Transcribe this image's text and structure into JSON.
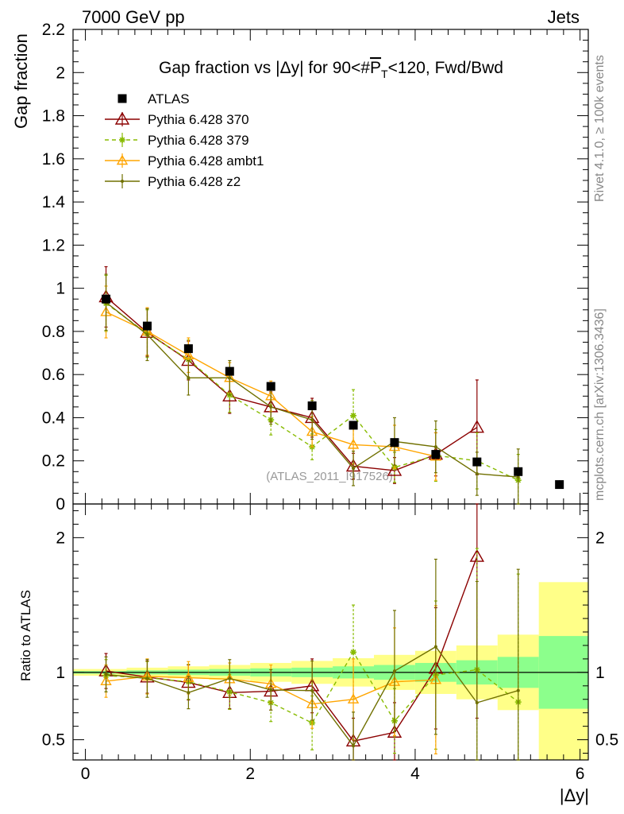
{
  "header": {
    "left": "7000 GeV pp",
    "right": "Jets"
  },
  "side_labels": {
    "rivet": "Rivet 4.1.0, ≥ 100k events",
    "mcplots": "mcplots.cern.ch [arXiv:1306.3436]"
  },
  "watermark": "(ATLAS_2011_I917526)",
  "colors": {
    "atlas": "#000000",
    "p370": "#8b0000",
    "p379": "#88bb00",
    "ambt1": "#ffa500",
    "z2": "#707000",
    "band_inner": "#8cff8c",
    "band_outer": "#ffff88"
  },
  "chart_data": [
    {
      "type": "scatter",
      "title": "Gap fraction vs |Δy| for 90<#P̅_T<120, Fwd/Bwd",
      "title_parts": {
        "pre": "Gap fraction vs |Δy| for 90<#",
        "p": "P",
        "t": "T",
        "post": "<120, Fwd/Bwd"
      },
      "xlabel": "|Δy|",
      "ylabel": "Gap fraction",
      "xlim": [
        -0.15,
        6.1
      ],
      "ylim": [
        0,
        2.2
      ],
      "x_ticks": [
        0,
        2,
        4,
        6
      ],
      "y_ticks": [
        0,
        0.2,
        0.4,
        0.6,
        0.8,
        1,
        1.2,
        1.4,
        1.6,
        1.8,
        2,
        2.2
      ],
      "y_tick_labels": [
        "0",
        "0.2",
        "0.4",
        "0.6",
        "0.8",
        "1",
        "1.2",
        "1.4",
        "1.6",
        "1.8",
        "2",
        "2.2"
      ],
      "x_tick_labels": [
        "0",
        "2",
        "4",
        "6"
      ],
      "legend": [
        "ATLAS",
        "Pythia 6.428 370",
        "Pythia 6.428 379",
        "Pythia 6.428 ambt1",
        "Pythia 6.428 z2"
      ],
      "series": [
        {
          "name": "ATLAS",
          "x": [
            0.25,
            0.75,
            1.25,
            1.75,
            2.25,
            2.75,
            3.25,
            3.75,
            4.25,
            4.75,
            5.25,
            5.75
          ],
          "values": [
            0.95,
            0.825,
            0.72,
            0.615,
            0.545,
            0.455,
            0.365,
            0.285,
            0.23,
            0.195,
            0.15,
            0.09
          ],
          "errors": [
            0.02,
            0.02,
            0.02,
            0.02,
            0.02,
            0.02,
            0.02,
            0.02,
            0.02,
            0.02,
            0.02,
            0.02
          ]
        },
        {
          "name": "Pythia 6.428 370",
          "x": [
            0.25,
            0.75,
            1.25,
            1.75,
            2.25,
            2.75,
            3.25,
            3.75,
            4.25,
            4.75
          ],
          "values": [
            0.96,
            0.795,
            0.665,
            0.5,
            0.45,
            0.4,
            0.175,
            0.155,
            0.23,
            0.355
          ],
          "errors": [
            0.14,
            0.11,
            0.09,
            0.08,
            0.07,
            0.09,
            0.06,
            0.06,
            0.1,
            0.22
          ]
        },
        {
          "name": "Pythia 6.428 379",
          "x": [
            0.25,
            0.75,
            1.25,
            1.75,
            2.25,
            2.75,
            3.25,
            3.75,
            4.25,
            4.75,
            5.25
          ],
          "values": [
            0.93,
            0.79,
            0.67,
            0.505,
            0.39,
            0.265,
            0.41,
            0.17,
            0.225,
            0.2,
            0.11
          ],
          "errors": [
            0.13,
            0.11,
            0.09,
            0.08,
            0.07,
            0.06,
            0.12,
            0.07,
            0.12,
            0.13,
            0.12
          ]
        },
        {
          "name": "Pythia 6.428 ambt1",
          "x": [
            0.25,
            0.75,
            1.25,
            1.75,
            2.25,
            2.75,
            3.25,
            3.75,
            4.25
          ],
          "values": [
            0.89,
            0.8,
            0.69,
            0.585,
            0.5,
            0.335,
            0.275,
            0.265,
            0.22
          ],
          "errors": [
            0.12,
            0.11,
            0.08,
            0.07,
            0.07,
            0.07,
            0.09,
            0.1,
            0.11
          ]
        },
        {
          "name": "Pythia 6.428 z2",
          "x": [
            0.25,
            0.75,
            1.25,
            1.75,
            2.25,
            2.75,
            3.25,
            3.75,
            4.25,
            4.75,
            5.25
          ],
          "values": [
            0.935,
            0.785,
            0.585,
            0.585,
            0.45,
            0.39,
            0.165,
            0.29,
            0.265,
            0.14,
            0.125
          ],
          "errors": [
            0.13,
            0.12,
            0.08,
            0.08,
            0.08,
            0.09,
            0.08,
            0.11,
            0.12,
            0.1,
            0.13
          ]
        }
      ]
    },
    {
      "type": "scatter",
      "title": "",
      "xlabel": "|Δy|",
      "ylabel": "Ratio to ATLAS",
      "xlim": [
        -0.15,
        6.1
      ],
      "ylim": [
        0.35,
        2.25
      ],
      "x_ticks": [
        0,
        2,
        4,
        6
      ],
      "x_tick_labels": [
        "0",
        "2",
        "4",
        "6"
      ],
      "y_ticks": [
        0.5,
        1,
        2
      ],
      "y_tick_labels": [
        "0.5",
        "1",
        "2"
      ],
      "bands": {
        "edges": [
          -0.15,
          0.5,
          1.0,
          1.5,
          2.0,
          2.5,
          3.0,
          3.5,
          4.0,
          4.5,
          5.0,
          5.5,
          6.1
        ],
        "inner_lo": [
          0.99,
          0.985,
          0.98,
          0.975,
          0.97,
          0.965,
          0.955,
          0.945,
          0.93,
          0.91,
          0.885,
          0.73
        ],
        "inner_hi": [
          1.01,
          1.015,
          1.02,
          1.025,
          1.03,
          1.035,
          1.045,
          1.055,
          1.07,
          1.09,
          1.115,
          1.27
        ],
        "outer_lo": [
          0.975,
          0.965,
          0.955,
          0.945,
          0.93,
          0.915,
          0.895,
          0.87,
          0.84,
          0.8,
          0.72,
          0.33
        ],
        "outer_hi": [
          1.025,
          1.035,
          1.045,
          1.055,
          1.07,
          1.085,
          1.105,
          1.13,
          1.16,
          1.2,
          1.28,
          1.67
        ]
      },
      "series": [
        {
          "name": "Pythia 6.428 370",
          "x": [
            0.25,
            0.75,
            1.25,
            1.75,
            2.25,
            2.75,
            3.25,
            3.75,
            4.25,
            4.75
          ],
          "values": [
            1.01,
            0.965,
            0.925,
            0.85,
            0.86,
            0.9,
            0.49,
            0.555,
            1.03,
            1.86
          ],
          "errors": [
            0.13,
            0.12,
            0.13,
            0.12,
            0.14,
            0.2,
            0.17,
            0.22,
            0.45,
            1.2
          ]
        },
        {
          "name": "Pythia 6.428 379",
          "x": [
            0.25,
            0.75,
            1.25,
            1.75,
            2.25,
            2.75,
            3.25,
            3.75,
            4.25,
            4.75,
            5.25
          ],
          "values": [
            0.975,
            0.96,
            0.93,
            0.855,
            0.775,
            0.625,
            1.15,
            0.64,
            0.98,
            1.02,
            0.78
          ],
          "errors": [
            0.12,
            0.12,
            0.13,
            0.13,
            0.14,
            0.2,
            0.35,
            0.24,
            0.55,
            0.9,
            0.95
          ]
        },
        {
          "name": "Pythia 6.428 ambt1",
          "x": [
            0.25,
            0.75,
            1.25,
            1.75,
            2.25,
            2.75,
            3.25,
            3.75,
            4.25
          ],
          "values": [
            0.935,
            0.97,
            0.96,
            0.95,
            0.915,
            0.765,
            0.8,
            0.93,
            0.945
          ],
          "errors": [
            0.12,
            0.13,
            0.12,
            0.12,
            0.14,
            0.18,
            0.3,
            0.4,
            0.55
          ]
        },
        {
          "name": "Pythia 6.428 z2",
          "x": [
            0.25,
            0.75,
            1.25,
            1.75,
            2.25,
            2.75,
            3.25,
            3.75,
            4.25,
            4.75,
            5.25
          ],
          "values": [
            0.985,
            0.955,
            0.85,
            0.955,
            0.87,
            0.865,
            0.455,
            1.01,
            1.19,
            0.775,
            0.865
          ],
          "errors": [
            0.13,
            0.14,
            0.12,
            0.14,
            0.15,
            0.22,
            0.25,
            0.45,
            0.65,
            0.9,
            0.9
          ]
        }
      ]
    }
  ]
}
